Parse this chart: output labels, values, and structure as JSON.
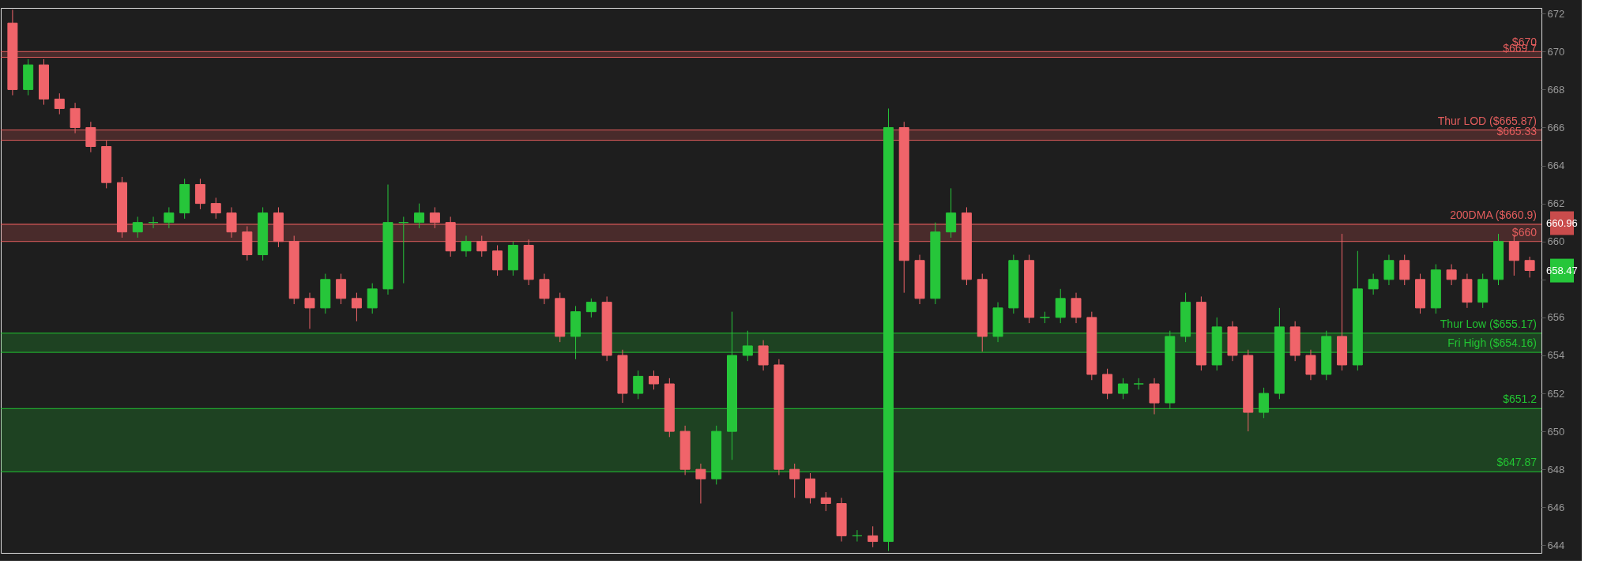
{
  "chart_data": {
    "type": "candlestick",
    "categories": [
      null,
      null,
      null,
      null,
      null,
      null,
      null,
      null,
      null,
      null,
      null,
      null,
      null,
      null,
      null,
      null,
      null,
      null,
      null,
      null,
      null,
      null,
      null,
      null,
      null,
      null,
      null,
      null,
      null,
      null,
      null,
      null,
      null,
      null,
      null,
      null,
      null,
      null,
      null,
      null,
      null,
      null,
      null,
      null,
      null,
      null,
      null,
      null,
      null,
      null,
      null,
      null,
      null,
      null,
      null,
      null,
      null,
      null,
      null,
      null,
      null,
      null,
      null,
      null,
      null,
      null,
      null,
      null,
      null,
      null,
      null,
      null,
      null,
      null,
      null,
      null,
      null,
      null,
      null,
      null,
      null,
      null,
      null,
      null,
      null,
      null,
      null,
      null,
      null,
      null,
      null,
      null,
      null,
      null,
      null,
      null,
      null,
      null
    ],
    "ohlc": [
      [
        671.5,
        672.2,
        667.7,
        668
      ],
      [
        668,
        669.6,
        667.7,
        669.3
      ],
      [
        669.3,
        669.6,
        667.2,
        667.5
      ],
      [
        667.5,
        667.8,
        666.7,
        667
      ],
      [
        667,
        667.3,
        665.7,
        666
      ],
      [
        666,
        666.3,
        664.7,
        665
      ],
      [
        665,
        665.3,
        662.8,
        663.1
      ],
      [
        663.1,
        663.4,
        660.2,
        660.5
      ],
      [
        660.5,
        661.3,
        660.2,
        661
      ],
      [
        661,
        661.3,
        660.7,
        661
      ],
      [
        661,
        661.8,
        660.7,
        661.5
      ],
      [
        661.5,
        663.3,
        661.2,
        663
      ],
      [
        663,
        663.3,
        661.7,
        662
      ],
      [
        662,
        662.3,
        661.2,
        661.5
      ],
      [
        661.5,
        661.8,
        660.2,
        660.5
      ],
      [
        660.5,
        660.8,
        659,
        659.3
      ],
      [
        659.3,
        661.8,
        659,
        661.5
      ],
      [
        661.5,
        661.8,
        659.7,
        660
      ],
      [
        660,
        660.3,
        656.7,
        657
      ],
      [
        657,
        657.3,
        655.4,
        656.5
      ],
      [
        656.5,
        658.3,
        656.2,
        658
      ],
      [
        658,
        658.3,
        656.7,
        657
      ],
      [
        657,
        657.3,
        655.8,
        656.5
      ],
      [
        656.5,
        657.8,
        656.2,
        657.5
      ],
      [
        657.5,
        663,
        657.2,
        661
      ],
      [
        661,
        661.3,
        657.8,
        661
      ],
      [
        661,
        662,
        660.7,
        661.5
      ],
      [
        661.5,
        661.8,
        660.7,
        661
      ],
      [
        661,
        661.3,
        659.2,
        659.5
      ],
      [
        659.5,
        660.3,
        659.2,
        660
      ],
      [
        660,
        660.3,
        659.2,
        659.5
      ],
      [
        659.5,
        659.8,
        658.2,
        658.5
      ],
      [
        658.5,
        660,
        658.2,
        659.8
      ],
      [
        659.8,
        660.1,
        657.7,
        658
      ],
      [
        658,
        658.3,
        656.7,
        657
      ],
      [
        657,
        657.3,
        654.7,
        655
      ],
      [
        655,
        656.6,
        653.8,
        656.3
      ],
      [
        656.3,
        657,
        656,
        656.8
      ],
      [
        656.8,
        657.1,
        653.7,
        654
      ],
      [
        654,
        654.3,
        651.5,
        652
      ],
      [
        652,
        653.2,
        651.7,
        652.9
      ],
      [
        652.9,
        653.2,
        652.2,
        652.5
      ],
      [
        652.5,
        652.8,
        649.7,
        650
      ],
      [
        650,
        650.3,
        647.7,
        648
      ],
      [
        648,
        648.3,
        646.2,
        647.5
      ],
      [
        647.5,
        650.3,
        647.2,
        650
      ],
      [
        650,
        656.3,
        648.5,
        654
      ],
      [
        654,
        655.3,
        653.7,
        654.5
      ],
      [
        654.5,
        654.8,
        653.2,
        653.5
      ],
      [
        653.5,
        653.8,
        647.7,
        648
      ],
      [
        648,
        648.3,
        646.5,
        647.5
      ],
      [
        647.5,
        647.8,
        646.2,
        646.5
      ],
      [
        646.5,
        646.8,
        645.8,
        646.2
      ],
      [
        646.2,
        646.5,
        644.2,
        644.5
      ],
      [
        644.5,
        644.8,
        644.2,
        644.5
      ],
      [
        644.5,
        645,
        643.9,
        644.2
      ],
      [
        644.2,
        667,
        643.7,
        666
      ],
      [
        666,
        666.3,
        657.3,
        659
      ],
      [
        659,
        659.3,
        656.7,
        657
      ],
      [
        657,
        661,
        656.7,
        660.5
      ],
      [
        660.5,
        662.8,
        660.2,
        661.5
      ],
      [
        661.5,
        661.8,
        657.7,
        658
      ],
      [
        658,
        658.3,
        654.2,
        655
      ],
      [
        655,
        656.8,
        654.7,
        656.5
      ],
      [
        656.5,
        659.3,
        656.2,
        659
      ],
      [
        659,
        659.3,
        655.7,
        656
      ],
      [
        656,
        656.3,
        655.7,
        656
      ],
      [
        656,
        657.5,
        655.7,
        657
      ],
      [
        657,
        657.3,
        655.7,
        656
      ],
      [
        656,
        656.3,
        652.7,
        653
      ],
      [
        653,
        653.3,
        651.7,
        652
      ],
      [
        652,
        652.8,
        651.7,
        652.5
      ],
      [
        652.5,
        652.8,
        652.2,
        652.5
      ],
      [
        652.5,
        652.8,
        650.9,
        651.5
      ],
      [
        651.5,
        655.3,
        651.2,
        655
      ],
      [
        655,
        657.3,
        654.7,
        656.8
      ],
      [
        656.8,
        657.1,
        653.2,
        653.5
      ],
      [
        653.5,
        656,
        653.2,
        655.5
      ],
      [
        655.5,
        655.8,
        653.7,
        654
      ],
      [
        654,
        654.3,
        650,
        651
      ],
      [
        651,
        652.3,
        650.7,
        652
      ],
      [
        652,
        656.5,
        651.7,
        655.5
      ],
      [
        655.5,
        655.8,
        653.7,
        654
      ],
      [
        654,
        654.3,
        652.7,
        653
      ],
      [
        653,
        655.3,
        652.7,
        655
      ],
      [
        655,
        660.4,
        653.2,
        653.5
      ],
      [
        653.5,
        659.5,
        653.2,
        657.5
      ],
      [
        657.5,
        658.3,
        657.2,
        658
      ],
      [
        658,
        659.3,
        657.7,
        659
      ],
      [
        659,
        659.3,
        657.7,
        658
      ],
      [
        658,
        658.3,
        656.2,
        656.5
      ],
      [
        656.5,
        658.8,
        656.2,
        658.5
      ],
      [
        658.5,
        658.8,
        657.7,
        658
      ],
      [
        658,
        658.3,
        656.5,
        656.8
      ],
      [
        656.8,
        658.3,
        656.5,
        658
      ],
      [
        658,
        660.4,
        657.7,
        660
      ],
      [
        660,
        660.3,
        658.2,
        659
      ],
      [
        659,
        659.2,
        658.1,
        658.47
      ]
    ],
    "ylim": [
      643.6,
      672.3
    ],
    "yticks": [
      644,
      646,
      648,
      650,
      652,
      654,
      656,
      {
        "value": 658,
        "label": null
      },
      660,
      662,
      664,
      666,
      668,
      670,
      672
    ],
    "grid": false,
    "bands": [
      {
        "axis": "y",
        "from": 669.7,
        "to": 670,
        "color": "#e35d5d"
      },
      {
        "axis": "y",
        "from": 665.33,
        "to": 665.87,
        "color": "#e35d5d"
      },
      {
        "axis": "y",
        "from": 660,
        "to": 660.96,
        "color": "#e35d5d"
      },
      {
        "axis": "y",
        "from": 654.16,
        "to": 655.17,
        "color": "#22c332"
      },
      {
        "axis": "y",
        "from": 647.87,
        "to": 651.2,
        "color": "#22c332"
      }
    ],
    "ref_lines": [
      {
        "axis": "y",
        "value": 670,
        "label": "$670",
        "color": "#e35d5d"
      },
      {
        "axis": "y",
        "value": 669.7,
        "label": "$669.7",
        "color": "#e35d5d"
      },
      {
        "axis": "y",
        "value": 665.87,
        "label": "Thur LOD ($665.87)",
        "color": "#e35d5d"
      },
      {
        "axis": "y",
        "value": 665.33,
        "label": "$665.33",
        "color": "#e35d5d"
      },
      {
        "axis": "y",
        "value": 660.9,
        "label": "200DMA ($660.9)",
        "color": "#e35d5d"
      },
      {
        "axis": "y",
        "value": 660,
        "label": "$660",
        "color": "#e35d5d"
      },
      {
        "axis": "y",
        "value": 655.17,
        "label": "Thur Low ($655.17)",
        "color": "#22c332"
      },
      {
        "axis": "y",
        "value": 654.16,
        "label": "Fri High ($654.16)",
        "color": "#22c332"
      },
      {
        "axis": "y",
        "value": 651.2,
        "label": "$651.2",
        "color": "#22c332"
      },
      {
        "axis": "y",
        "value": 647.87,
        "label": "$647.87",
        "color": "#22c332"
      }
    ],
    "annotations": [
      "660.96",
      "658.47"
    ]
  }
}
